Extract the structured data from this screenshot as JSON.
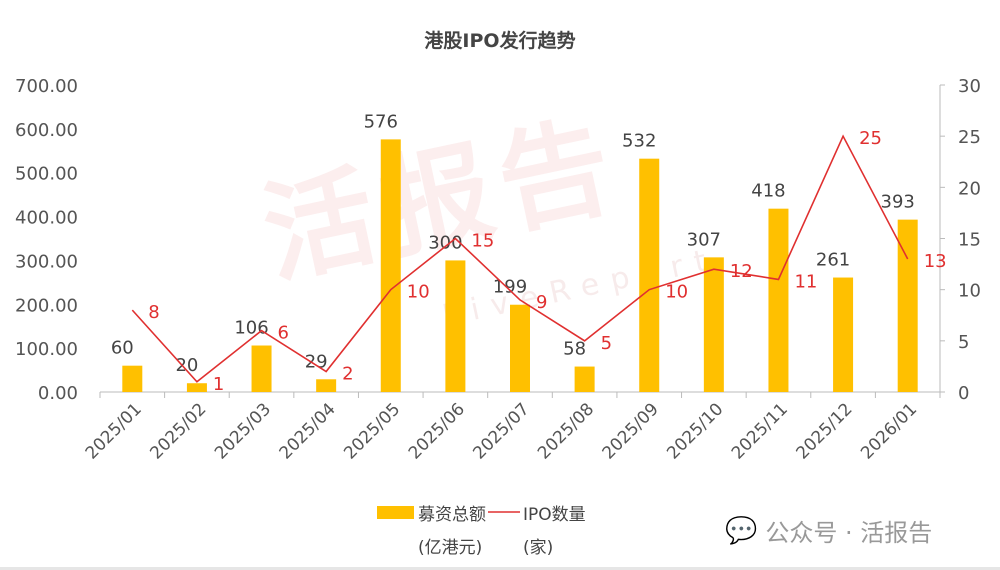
{
  "chart_data": {
    "type": "bar+line",
    "title": "港股IPO发行趋势",
    "categories": [
      "2025/01",
      "2025/02",
      "2025/03",
      "2025/04",
      "2025/05",
      "2025/06",
      "2025/07",
      "2025/08",
      "2025/09",
      "2025/10",
      "2025/11",
      "2025/12",
      "2026/01"
    ],
    "series": [
      {
        "name": "募资总额",
        "unit": "(亿港元)",
        "type": "bar",
        "axis": "left",
        "color": "#FFC000",
        "values": [
          60,
          20,
          106,
          29,
          576,
          300,
          199,
          58,
          532,
          307,
          418,
          261,
          393
        ]
      },
      {
        "name": "IPO数量",
        "unit": "(家)",
        "type": "line",
        "axis": "right",
        "color": "#E03030",
        "values": [
          8,
          1,
          6,
          2,
          10,
          15,
          9,
          5,
          10,
          12,
          11,
          25,
          13
        ]
      }
    ],
    "ylim_left": [
      0,
      700
    ],
    "yticks_left": [
      "0.00",
      "100.00",
      "200.00",
      "300.00",
      "400.00",
      "500.00",
      "600.00",
      "700.00"
    ],
    "ylim_right": [
      0,
      30
    ],
    "yticks_right": [
      "0",
      "5",
      "10",
      "15",
      "20",
      "25",
      "30"
    ],
    "legend": "bottom"
  },
  "watermark": {
    "main": "活报告",
    "sub": "LiveReport"
  },
  "footer": {
    "source": "公众号 · 活报告"
  }
}
